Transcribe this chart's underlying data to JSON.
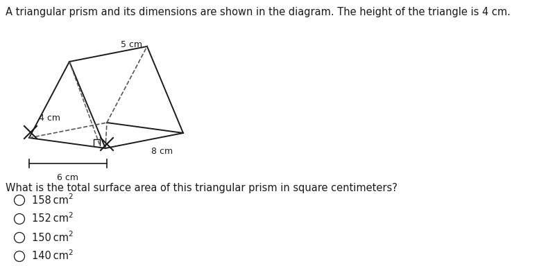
{
  "title_text": "A triangular prism and its dimensions are shown in the diagram. The height of the triangle is 4 cm.",
  "question_text": "What is the total surface area of this triangular prism in square centimeters?",
  "options": [
    "158 cm",
    "152 cm",
    "150 cm",
    "140 cm"
  ],
  "label_5cm": "5 cm",
  "label_8cm": "8 cm",
  "label_4cm": "4 cm",
  "label_6cm": "6 cm",
  "bg_color": "#ffffff",
  "line_color": "#1a1a1a",
  "dashed_color": "#555555",
  "title_fontsize": 10.5,
  "question_fontsize": 10.5,
  "option_fontsize": 10.5
}
